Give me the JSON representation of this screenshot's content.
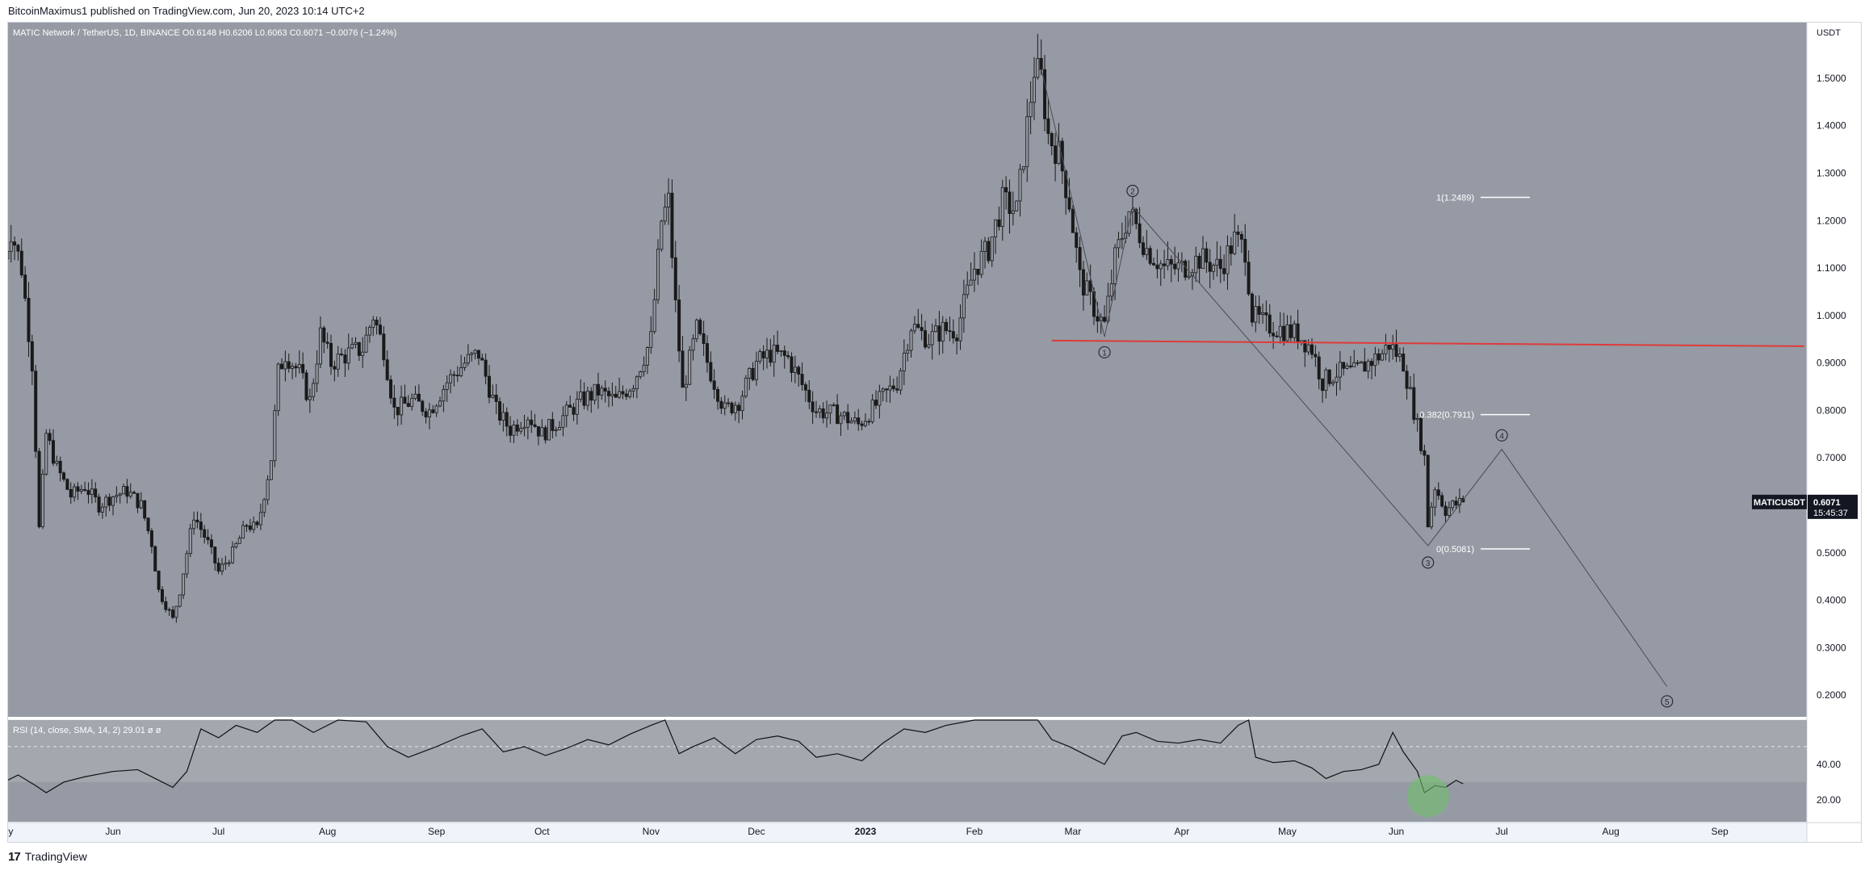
{
  "header": {
    "published_line": "BitcoinMaximus1 published on TradingView.com, Jun 20, 2023 10:14 UTC+2"
  },
  "footer": {
    "logo_glyph": "17",
    "brand": "TradingView"
  },
  "colors": {
    "price_pane_bg": "#959aa4",
    "rsi_pane_bg": "#959aa4",
    "rsi_band": "#a3a7ae",
    "axis_bg": "#ffffff",
    "candle": "#1a1a1a",
    "support_line": "#e03a3a",
    "wave_line": "#4a4d55",
    "fib_line": "#ffffff",
    "rsi_highlight": "#6fbf6a"
  },
  "chart_data": {
    "type": "candlestick",
    "symbol_legend": {
      "title": "MATIC Network / TetherUS, 1D, BINANCE",
      "o_label": "O",
      "o_value": "0.6148",
      "h_label": "H",
      "h_value": "0.6206",
      "l_label": "L",
      "l_value": "0.6063",
      "c_label": "C",
      "c_value": "0.6071",
      "change": "−0.0076 (−1.24%)"
    },
    "price_axis": {
      "unit_label": "USDT",
      "ylim": [
        0.1544,
        1.6172
      ],
      "ticks": [
        "1.5000",
        "1.4000",
        "1.3000",
        "1.2000",
        "1.1000",
        "1.0000",
        "0.9000",
        "0.8000",
        "0.7000",
        "0.6000",
        "0.5000",
        "0.4000",
        "0.3000",
        "0.2000"
      ]
    },
    "last_price": {
      "symbol": "MATICUSDT",
      "value": "0.6071",
      "countdown": "15:45:37"
    },
    "x_axis": {
      "months": [
        {
          "label": "May",
          "x": "2022-05-01"
        },
        {
          "label": "Jun",
          "x": "2022-06-01"
        },
        {
          "label": "Jul",
          "x": "2022-07-01"
        },
        {
          "label": "Aug",
          "x": "2022-08-01"
        },
        {
          "label": "Sep",
          "x": "2022-09-01"
        },
        {
          "label": "Oct",
          "x": "2022-10-01"
        },
        {
          "label": "Nov",
          "x": "2022-11-01"
        },
        {
          "label": "Dec",
          "x": "2022-12-01"
        },
        {
          "label": "2023",
          "x": "2023-01-01"
        },
        {
          "label": "Feb",
          "x": "2023-02-01"
        },
        {
          "label": "Mar",
          "x": "2023-03-01"
        },
        {
          "label": "Apr",
          "x": "2023-04-01"
        },
        {
          "label": "May",
          "x": "2023-05-01"
        },
        {
          "label": "Jun",
          "x": "2023-06-01"
        },
        {
          "label": "Jul",
          "x": "2023-07-01"
        },
        {
          "label": "Aug",
          "x": "2023-08-01"
        },
        {
          "label": "Sep",
          "x": "2023-09-01"
        }
      ]
    },
    "price_path": [
      [
        "2022-05-01",
        1.12
      ],
      [
        "2022-05-03",
        1.18
      ],
      [
        "2022-05-06",
        1.1
      ],
      [
        "2022-05-09",
        0.9
      ],
      [
        "2022-05-11",
        0.55
      ],
      [
        "2022-05-13",
        0.75
      ],
      [
        "2022-05-16",
        0.68
      ],
      [
        "2022-05-20",
        0.62
      ],
      [
        "2022-05-24",
        0.64
      ],
      [
        "2022-05-28",
        0.6
      ],
      [
        "2022-06-01",
        0.62
      ],
      [
        "2022-06-05",
        0.63
      ],
      [
        "2022-06-09",
        0.6
      ],
      [
        "2022-06-12",
        0.52
      ],
      [
        "2022-06-14",
        0.42
      ],
      [
        "2022-06-18",
        0.36
      ],
      [
        "2022-06-20",
        0.42
      ],
      [
        "2022-06-24",
        0.58
      ],
      [
        "2022-06-28",
        0.52
      ],
      [
        "2022-07-01",
        0.46
      ],
      [
        "2022-07-05",
        0.5
      ],
      [
        "2022-07-09",
        0.56
      ],
      [
        "2022-07-12",
        0.55
      ],
      [
        "2022-07-16",
        0.7
      ],
      [
        "2022-07-18",
        0.88
      ],
      [
        "2022-07-20",
        0.92
      ],
      [
        "2022-07-24",
        0.88
      ],
      [
        "2022-07-27",
        0.82
      ],
      [
        "2022-07-30",
        0.96
      ],
      [
        "2022-08-02",
        0.9
      ],
      [
        "2022-08-07",
        0.92
      ],
      [
        "2022-08-11",
        0.93
      ],
      [
        "2022-08-14",
        1.0
      ],
      [
        "2022-08-17",
        0.93
      ],
      [
        "2022-08-20",
        0.8
      ],
      [
        "2022-08-25",
        0.82
      ],
      [
        "2022-08-30",
        0.8
      ],
      [
        "2022-09-04",
        0.86
      ],
      [
        "2022-09-09",
        0.9
      ],
      [
        "2022-09-13",
        0.92
      ],
      [
        "2022-09-18",
        0.8
      ],
      [
        "2022-09-22",
        0.76
      ],
      [
        "2022-09-27",
        0.79
      ],
      [
        "2022-10-01",
        0.75
      ],
      [
        "2022-10-06",
        0.78
      ],
      [
        "2022-10-12",
        0.82
      ],
      [
        "2022-10-17",
        0.84
      ],
      [
        "2022-10-22",
        0.82
      ],
      [
        "2022-10-27",
        0.86
      ],
      [
        "2022-11-01",
        0.95
      ],
      [
        "2022-11-04",
        1.2
      ],
      [
        "2022-11-06",
        1.24
      ],
      [
        "2022-11-08",
        1.02
      ],
      [
        "2022-11-10",
        0.84
      ],
      [
        "2022-11-14",
        0.97
      ],
      [
        "2022-11-18",
        0.88
      ],
      [
        "2022-11-22",
        0.8
      ],
      [
        "2022-11-26",
        0.82
      ],
      [
        "2022-12-01",
        0.9
      ],
      [
        "2022-12-05",
        0.92
      ],
      [
        "2022-12-10",
        0.91
      ],
      [
        "2022-12-15",
        0.84
      ],
      [
        "2022-12-18",
        0.8
      ],
      [
        "2022-12-25",
        0.79
      ],
      [
        "2022-12-30",
        0.77
      ],
      [
        "2023-01-05",
        0.82
      ],
      [
        "2023-01-10",
        0.86
      ],
      [
        "2023-01-14",
        0.98
      ],
      [
        "2023-01-19",
        0.95
      ],
      [
        "2023-01-23",
        0.97
      ],
      [
        "2023-01-27",
        0.97
      ],
      [
        "2023-02-01",
        1.1
      ],
      [
        "2023-02-05",
        1.14
      ],
      [
        "2023-02-09",
        1.24
      ],
      [
        "2023-02-13",
        1.22
      ],
      [
        "2023-02-16",
        1.4
      ],
      [
        "2023-02-18",
        1.52
      ],
      [
        "2023-02-20",
        1.5
      ],
      [
        "2023-02-22",
        1.38
      ],
      [
        "2023-02-25",
        1.34
      ],
      [
        "2023-02-28",
        1.24
      ],
      [
        "2023-03-03",
        1.08
      ],
      [
        "2023-03-08",
        1.0
      ],
      [
        "2023-03-10",
        0.98
      ],
      [
        "2023-03-13",
        1.12
      ],
      [
        "2023-03-17",
        1.22
      ],
      [
        "2023-03-22",
        1.14
      ],
      [
        "2023-03-27",
        1.1
      ],
      [
        "2023-04-01",
        1.1
      ],
      [
        "2023-04-06",
        1.12
      ],
      [
        "2023-04-12",
        1.1
      ],
      [
        "2023-04-16",
        1.16
      ],
      [
        "2023-04-19",
        1.14
      ],
      [
        "2023-04-21",
        1.0
      ],
      [
        "2023-04-25",
        0.98
      ],
      [
        "2023-04-30",
        0.97
      ],
      [
        "2023-05-04",
        0.96
      ],
      [
        "2023-05-08",
        0.93
      ],
      [
        "2023-05-11",
        0.86
      ],
      [
        "2023-05-15",
        0.88
      ],
      [
        "2023-05-20",
        0.88
      ],
      [
        "2023-05-24",
        0.9
      ],
      [
        "2023-05-28",
        0.92
      ],
      [
        "2023-05-30",
        0.94
      ],
      [
        "2023-06-03",
        0.9
      ],
      [
        "2023-06-06",
        0.8
      ],
      [
        "2023-06-09",
        0.7
      ],
      [
        "2023-06-10",
        0.56
      ],
      [
        "2023-06-12",
        0.64
      ],
      [
        "2023-06-15",
        0.59
      ],
      [
        "2023-06-17",
        0.6
      ],
      [
        "2023-06-20",
        0.6071
      ]
    ],
    "support_line": {
      "label": "",
      "from": [
        "2023-02-23",
        0.9472
      ],
      "to": [
        "2023-09-25",
        0.9353
      ]
    },
    "wave_count": [
      {
        "label": "1",
        "x": "2023-03-10",
        "y": 0.955,
        "marker_y": 0.9225
      },
      {
        "label": "2",
        "x": "2023-03-18",
        "y": 1.23,
        "marker_y": 1.2625
      },
      {
        "label": "3",
        "x": "2023-06-10",
        "y": 0.515,
        "marker_y": 0.4795
      },
      {
        "label": "4",
        "x": "2023-07-01",
        "y": 0.718,
        "marker_y": 0.7475
      },
      {
        "label": "5",
        "x": "2023-08-17",
        "y": 0.218,
        "marker_y": 0.187
      }
    ],
    "wave_path": [
      [
        "2023-02-20",
        1.52
      ],
      [
        "2023-03-10",
        0.955
      ],
      [
        "2023-03-18",
        1.23
      ],
      [
        "2023-06-10",
        0.515
      ],
      [
        "2023-07-01",
        0.718
      ],
      [
        "2023-08-17",
        0.218
      ]
    ],
    "fib_levels": [
      {
        "ratio": "1",
        "price": "1.2489",
        "label": "1(1.2489)"
      },
      {
        "ratio": "0.382",
        "price": "0.7911",
        "label": "0.382(0.7911)"
      },
      {
        "ratio": "0",
        "price": "0.5081",
        "label": "0(0.5081)"
      }
    ],
    "fib_x_range": [
      "2023-06-25",
      "2023-07-09"
    ],
    "rsi": {
      "legend": "RSI (14, close, SMA, 14, 2)",
      "value": "29.01",
      "extra": "ø ø",
      "ylim": [
        7.6,
        65.0
      ],
      "ticks": [
        "40.00",
        "20.00"
      ],
      "band": [
        30,
        70
      ],
      "dashed_level": 50,
      "highlight": {
        "x": "2023-06-10",
        "y": 22
      },
      "path": [
        [
          "2022-05-01",
          30
        ],
        [
          "2022-05-05",
          34
        ],
        [
          "2022-05-10",
          28
        ],
        [
          "2022-05-13",
          24
        ],
        [
          "2022-05-18",
          30
        ],
        [
          "2022-05-24",
          33
        ],
        [
          "2022-06-01",
          36
        ],
        [
          "2022-06-08",
          37
        ],
        [
          "2022-06-13",
          32
        ],
        [
          "2022-06-18",
          27
        ],
        [
          "2022-06-22",
          36
        ],
        [
          "2022-06-26",
          60
        ],
        [
          "2022-07-01",
          55
        ],
        [
          "2022-07-06",
          62
        ],
        [
          "2022-07-12",
          58
        ],
        [
          "2022-07-17",
          72
        ],
        [
          "2022-07-22",
          66
        ],
        [
          "2022-07-28",
          58
        ],
        [
          "2022-08-04",
          66
        ],
        [
          "2022-08-12",
          64
        ],
        [
          "2022-08-18",
          50
        ],
        [
          "2022-08-24",
          44
        ],
        [
          "2022-09-01",
          50
        ],
        [
          "2022-09-08",
          56
        ],
        [
          "2022-09-14",
          60
        ],
        [
          "2022-09-20",
          47
        ],
        [
          "2022-09-26",
          50
        ],
        [
          "2022-10-02",
          45
        ],
        [
          "2022-10-08",
          49
        ],
        [
          "2022-10-14",
          54
        ],
        [
          "2022-10-20",
          51
        ],
        [
          "2022-10-26",
          57
        ],
        [
          "2022-11-01",
          62
        ],
        [
          "2022-11-05",
          70
        ],
        [
          "2022-11-09",
          46
        ],
        [
          "2022-11-13",
          50
        ],
        [
          "2022-11-19",
          55
        ],
        [
          "2022-11-25",
          46
        ],
        [
          "2022-12-01",
          54
        ],
        [
          "2022-12-07",
          56
        ],
        [
          "2022-12-13",
          53
        ],
        [
          "2022-12-18",
          44
        ],
        [
          "2022-12-24",
          46
        ],
        [
          "2022-12-31",
          42
        ],
        [
          "2023-01-06",
          52
        ],
        [
          "2023-01-12",
          60
        ],
        [
          "2023-01-18",
          58
        ],
        [
          "2023-01-24",
          62
        ],
        [
          "2023-02-01",
          66
        ],
        [
          "2023-02-08",
          70
        ],
        [
          "2023-02-14",
          66
        ],
        [
          "2023-02-19",
          78
        ],
        [
          "2023-02-23",
          54
        ],
        [
          "2023-02-28",
          50
        ],
        [
          "2023-03-05",
          45
        ],
        [
          "2023-03-10",
          40
        ],
        [
          "2023-03-15",
          56
        ],
        [
          "2023-03-19",
          58
        ],
        [
          "2023-03-25",
          53
        ],
        [
          "2023-03-31",
          52
        ],
        [
          "2023-04-06",
          54
        ],
        [
          "2023-04-12",
          52
        ],
        [
          "2023-04-17",
          62
        ],
        [
          "2023-04-20",
          66
        ],
        [
          "2023-04-22",
          44
        ],
        [
          "2023-04-27",
          41
        ],
        [
          "2023-05-03",
          42
        ],
        [
          "2023-05-08",
          38
        ],
        [
          "2023-05-12",
          32
        ],
        [
          "2023-05-17",
          36
        ],
        [
          "2023-05-22",
          37
        ],
        [
          "2023-05-27",
          40
        ],
        [
          "2023-05-31",
          58
        ],
        [
          "2023-06-03",
          47
        ],
        [
          "2023-06-07",
          36
        ],
        [
          "2023-06-09",
          24
        ],
        [
          "2023-06-12",
          28
        ],
        [
          "2023-06-15",
          27
        ],
        [
          "2023-06-18",
          31
        ],
        [
          "2023-06-20",
          29.01
        ]
      ]
    }
  }
}
